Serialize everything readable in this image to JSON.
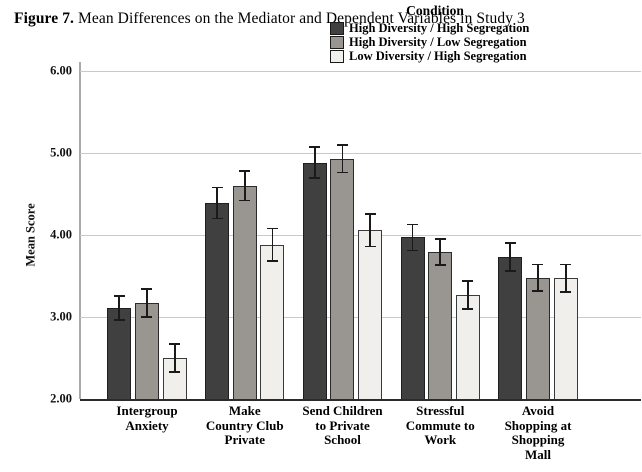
{
  "header": {
    "figure_label": "Figure 7.",
    "figure_caption": " Mean Differences on the Mediator and Dependent Variables in Study 3"
  },
  "legend": {
    "title": "Condition"
  },
  "chart_data": {
    "type": "bar",
    "title": "Figure 7. Mean Differences on the Mediator and Dependent Variables in Study 3",
    "xlabel": "",
    "ylabel": "Mean Score",
    "ylim": [
      2.0,
      6.0
    ],
    "yticks": [
      "6.00",
      "5.00",
      "4.00",
      "3.00",
      "2.00"
    ],
    "ytick_values": [
      6,
      5,
      4,
      3,
      2
    ],
    "grid": true,
    "legend_title": "Condition",
    "legend_position": "top-right-inside",
    "error_bars": true,
    "categories": [
      "Intergroup\nAnxiety",
      "Make\nCountry Club\nPrivate",
      "Send Children\nto Private\nSchool",
      "Stressful\nCommute to\nWork",
      "Avoid\nShopping at\nShopping\nMall"
    ],
    "series": [
      {
        "name": "High Diversity / High Segregation",
        "color": "#404040",
        "border_color": "#1f1f1f",
        "values": [
          3.11,
          4.39,
          4.88,
          3.97,
          3.73
        ],
        "errors": [
          0.16,
          0.2,
          0.2,
          0.17,
          0.18
        ]
      },
      {
        "name": "High Diversity / Low Segregation",
        "color": "#999591",
        "border_color": "#2b2b2b",
        "values": [
          3.17,
          4.6,
          4.93,
          3.79,
          3.48
        ],
        "errors": [
          0.18,
          0.19,
          0.18,
          0.17,
          0.17
        ]
      },
      {
        "name": "Low Diversity / High Segregation",
        "color": "#f0efec",
        "border_color": "#3a3a3a",
        "values": [
          2.5,
          3.88,
          4.06,
          3.27,
          3.47
        ],
        "errors": [
          0.18,
          0.21,
          0.21,
          0.18,
          0.18
        ]
      }
    ],
    "colors": {
      "gridline": "#c9c9c9",
      "y_axis_line": "#a9a9a9",
      "x_axis_line": "#2b2b2b",
      "error_bar": "#1a1a1a"
    }
  }
}
